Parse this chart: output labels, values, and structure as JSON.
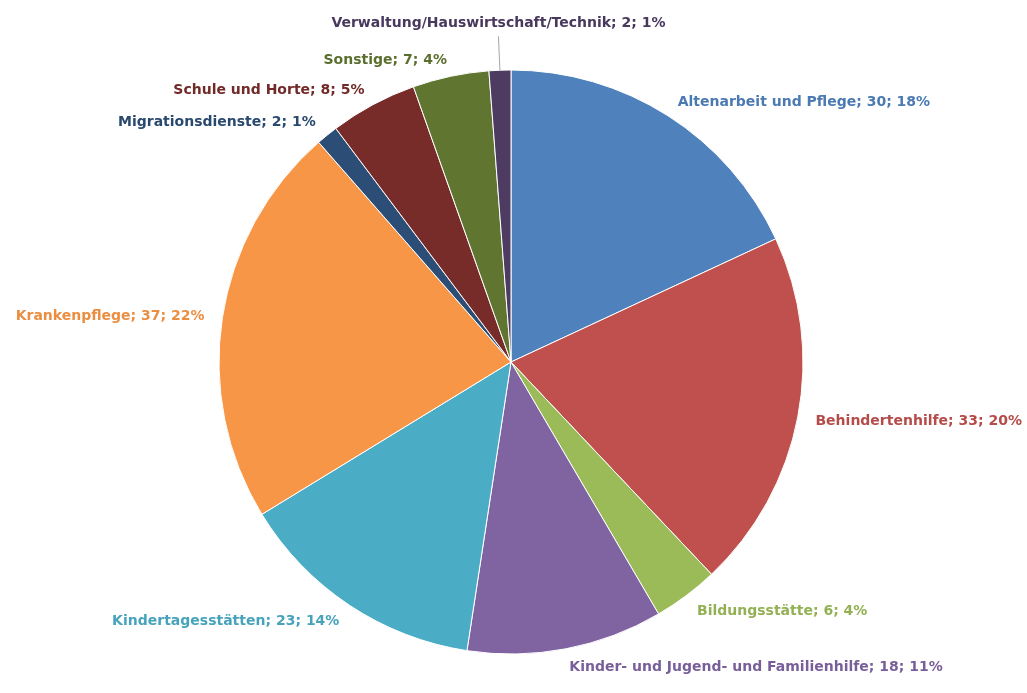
{
  "chart_data": {
    "type": "pie",
    "categories": [
      "Altenarbeit und Pflege",
      "Behindertenhilfe",
      "Bildungsstätte",
      "Kinder- und Jugend- und Familienhilfe",
      "Kindertagesstätten",
      "Krankenpflege",
      "Migrationsdienste",
      "Schule und Horte",
      "Sonstige",
      "Verwaltung/Hauswirtschaft/Technik"
    ],
    "values": [
      30,
      33,
      6,
      18,
      23,
      37,
      2,
      8,
      7,
      2
    ],
    "value_labels": [
      "30; 18%",
      "33; 20%",
      "6; 4%",
      "18; 11%",
      "23; 14%",
      "37; 22%",
      "2; 1%",
      "8; 5%",
      "7; 4%",
      "2; 1%"
    ],
    "colors": [
      "#4f81bd",
      "#c0504d",
      "#9bbb59",
      "#8064a2",
      "#4bacc6",
      "#f79646",
      "#2c4d75",
      "#772c2a",
      "#5f7530",
      "#4d3b62"
    ],
    "legend": false
  }
}
